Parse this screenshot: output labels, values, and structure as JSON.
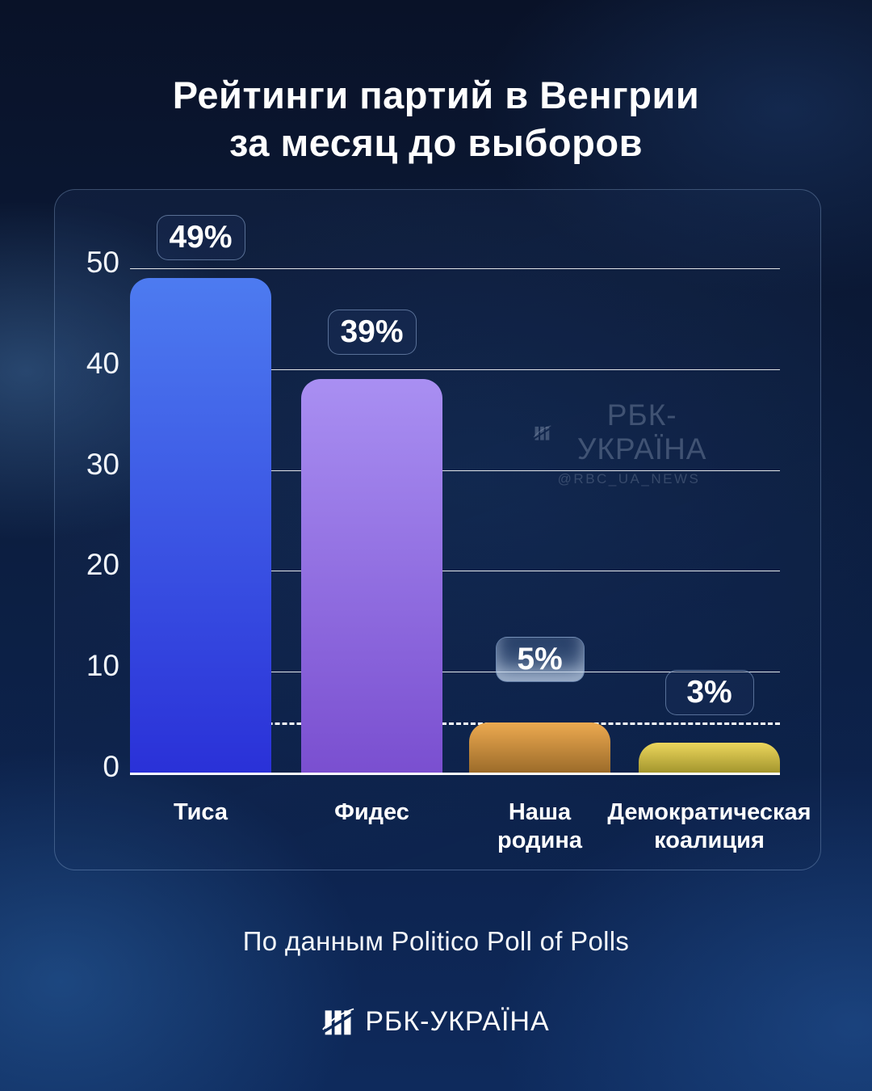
{
  "title": {
    "line1": "Рейтинги партий в Венгрии",
    "line2": "за месяц до выборов"
  },
  "watermark": {
    "brand": "РБК-УКРАЇНА",
    "handle": "@RBC_UA_NEWS"
  },
  "source": "По данным Politico Poll of Polls",
  "footer": {
    "brand": "РБК-УКРАЇНА"
  },
  "chart_data": {
    "type": "bar",
    "title": "Рейтинги партий в Венгрии за месяц до выборов",
    "categories": [
      "Тиса",
      "Фидес",
      "Наша родина",
      "Демократическая коалиция"
    ],
    "category_lines": [
      [
        "Тиса"
      ],
      [
        "Фидес"
      ],
      [
        "Наша",
        "родина"
      ],
      [
        "Демократическая",
        "коалиция"
      ]
    ],
    "values": [
      49,
      39,
      5,
      3
    ],
    "value_labels": [
      "49%",
      "39%",
      "5%",
      "3%"
    ],
    "ylabel": "",
    "xlabel": "",
    "ylim": [
      0,
      52
    ],
    "yticks": [
      0,
      10,
      20,
      30,
      40,
      50
    ],
    "threshold_line": 5,
    "grid": true,
    "legend": false,
    "bar_colors": [
      {
        "top": "#4d7bf0",
        "bottom": "#2a31d8"
      },
      {
        "top": "#a98ff2",
        "bottom": "#7a4fd0"
      },
      {
        "top": "#edaa50",
        "bottom": "#9c6c2a"
      },
      {
        "top": "#ecd65c",
        "bottom": "#a3962e"
      }
    ],
    "grid_color": "#ffffff",
    "threshold_color": "#ffffff"
  }
}
